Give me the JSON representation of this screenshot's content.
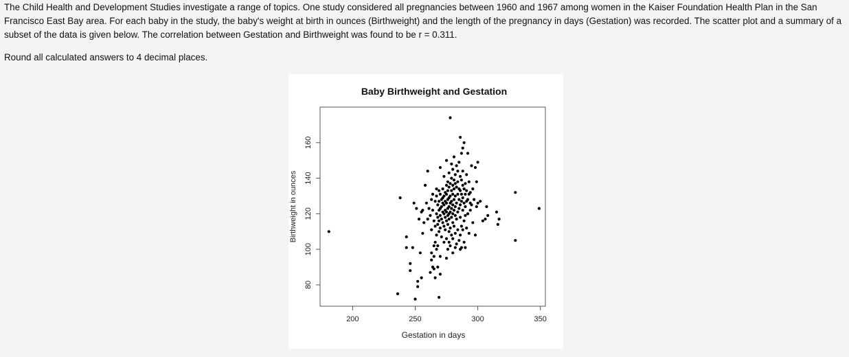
{
  "problem": {
    "intro": "The Child Health and Development Studies investigate a range of topics. One study considered all pregnancies between 1960 and 1967 among women in the Kaiser Foundation Health Plan in the San Francisco East Bay area. For each baby in the study, the baby's weight at birth in ounces (Birthweight) and the length of the pregnancy in days (Gestation) was recorded. The scatter plot and a summary of a subset of the data is given below. The correlation between Gestation and Birthweight was found to be r = 0.311.",
    "rounding_note": "Round all calculated answers to 4 decimal places."
  },
  "chart_data": {
    "type": "scatter",
    "title": "Baby Birthweight and Gestation",
    "xlabel": "Gestation in days",
    "ylabel": "Birthweight in ounces",
    "xlim": [
      174,
      354
    ],
    "ylim": [
      68,
      180
    ],
    "x_ticks": [
      200,
      250,
      300,
      350
    ],
    "y_ticks": [
      80,
      100,
      120,
      140,
      160
    ],
    "marker_color": "#000000",
    "points": [
      [
        181,
        110
      ],
      [
        238,
        129
      ],
      [
        236,
        75
      ],
      [
        243,
        107
      ],
      [
        243,
        101
      ],
      [
        246,
        92
      ],
      [
        246,
        88
      ],
      [
        248,
        101
      ],
      [
        249,
        126
      ],
      [
        250,
        72
      ],
      [
        251,
        123
      ],
      [
        252,
        82
      ],
      [
        252,
        79
      ],
      [
        253,
        117
      ],
      [
        254,
        98
      ],
      [
        255,
        84
      ],
      [
        255,
        121
      ],
      [
        256,
        122
      ],
      [
        256,
        109
      ],
      [
        257,
        115
      ],
      [
        258,
        136
      ],
      [
        259,
        126
      ],
      [
        260,
        144
      ],
      [
        260,
        117
      ],
      [
        261,
        123
      ],
      [
        262,
        119
      ],
      [
        262,
        87
      ],
      [
        263,
        128
      ],
      [
        263,
        111
      ],
      [
        263,
        98
      ],
      [
        263,
        94
      ],
      [
        264,
        131
      ],
      [
        264,
        122
      ],
      [
        264,
        90
      ],
      [
        265,
        116
      ],
      [
        265,
        102
      ],
      [
        265,
        96
      ],
      [
        265,
        89
      ],
      [
        266,
        127
      ],
      [
        266,
        113
      ],
      [
        266,
        104
      ],
      [
        266,
        84
      ],
      [
        267,
        134
      ],
      [
        267,
        130
      ],
      [
        267,
        120
      ],
      [
        267,
        108
      ],
      [
        267,
        100
      ],
      [
        268,
        125
      ],
      [
        268,
        118
      ],
      [
        268,
        114
      ],
      [
        268,
        102
      ],
      [
        268,
        90
      ],
      [
        269,
        133
      ],
      [
        269,
        127
      ],
      [
        269,
        122
      ],
      [
        269,
        116
      ],
      [
        269,
        110
      ],
      [
        269,
        73
      ],
      [
        270,
        146
      ],
      [
        270,
        131
      ],
      [
        270,
        123
      ],
      [
        270,
        119
      ],
      [
        270,
        112
      ],
      [
        270,
        96
      ],
      [
        270,
        86
      ],
      [
        271,
        128
      ],
      [
        271,
        124
      ],
      [
        271,
        117
      ],
      [
        271,
        107
      ],
      [
        272,
        134
      ],
      [
        272,
        129
      ],
      [
        272,
        126
      ],
      [
        272,
        121
      ],
      [
        272,
        115
      ],
      [
        273,
        141
      ],
      [
        273,
        130
      ],
      [
        273,
        125
      ],
      [
        273,
        120
      ],
      [
        273,
        113
      ],
      [
        273,
        104
      ],
      [
        274,
        132
      ],
      [
        274,
        127
      ],
      [
        274,
        122
      ],
      [
        274,
        118
      ],
      [
        274,
        111
      ],
      [
        275,
        150
      ],
      [
        275,
        136
      ],
      [
        275,
        131
      ],
      [
        275,
        126
      ],
      [
        275,
        121
      ],
      [
        275,
        116
      ],
      [
        275,
        106
      ],
      [
        275,
        95
      ],
      [
        276,
        138
      ],
      [
        276,
        133
      ],
      [
        276,
        128
      ],
      [
        276,
        123
      ],
      [
        276,
        119
      ],
      [
        276,
        114
      ],
      [
        276,
        100
      ],
      [
        277,
        143
      ],
      [
        277,
        135
      ],
      [
        277,
        129
      ],
      [
        277,
        124
      ],
      [
        277,
        120
      ],
      [
        277,
        117
      ],
      [
        277,
        110
      ],
      [
        277,
        104
      ],
      [
        278,
        174
      ],
      [
        278,
        137
      ],
      [
        278,
        130
      ],
      [
        278,
        126
      ],
      [
        278,
        121
      ],
      [
        278,
        112
      ],
      [
        278,
        102
      ],
      [
        279,
        148
      ],
      [
        279,
        140
      ],
      [
        279,
        133
      ],
      [
        279,
        127
      ],
      [
        279,
        123
      ],
      [
        279,
        118
      ],
      [
        279,
        108
      ],
      [
        280,
        145
      ],
      [
        280,
        136
      ],
      [
        280,
        131
      ],
      [
        280,
        125
      ],
      [
        280,
        120
      ],
      [
        280,
        115
      ],
      [
        280,
        106
      ],
      [
        280,
        98
      ],
      [
        281,
        152
      ],
      [
        281,
        139
      ],
      [
        281,
        134
      ],
      [
        281,
        128
      ],
      [
        281,
        122
      ],
      [
        281,
        113
      ],
      [
        282,
        142
      ],
      [
        282,
        137
      ],
      [
        282,
        130
      ],
      [
        282,
        124
      ],
      [
        282,
        119
      ],
      [
        282,
        109
      ],
      [
        282,
        101
      ],
      [
        283,
        147
      ],
      [
        283,
        135
      ],
      [
        283,
        126
      ],
      [
        283,
        117
      ],
      [
        283,
        103
      ],
      [
        284,
        144
      ],
      [
        284,
        138
      ],
      [
        284,
        131
      ],
      [
        284,
        121
      ],
      [
        284,
        111
      ],
      [
        285,
        149
      ],
      [
        285,
        134
      ],
      [
        285,
        128
      ],
      [
        285,
        123
      ],
      [
        285,
        105
      ],
      [
        286,
        163
      ],
      [
        286,
        141
      ],
      [
        286,
        133
      ],
      [
        286,
        125
      ],
      [
        286,
        118
      ],
      [
        286,
        108
      ],
      [
        286,
        100
      ],
      [
        287,
        154
      ],
      [
        287,
        139
      ],
      [
        287,
        131
      ],
      [
        287,
        127
      ],
      [
        287,
        113
      ],
      [
        287,
        101
      ],
      [
        288,
        157
      ],
      [
        288,
        144
      ],
      [
        288,
        136
      ],
      [
        288,
        129
      ],
      [
        288,
        122
      ],
      [
        288,
        111
      ],
      [
        289,
        160
      ],
      [
        289,
        134
      ],
      [
        289,
        126
      ],
      [
        289,
        116
      ],
      [
        289,
        104
      ],
      [
        290,
        137
      ],
      [
        290,
        131
      ],
      [
        290,
        124
      ],
      [
        290,
        119
      ],
      [
        290,
        101
      ],
      [
        291,
        142
      ],
      [
        291,
        133
      ],
      [
        291,
        127
      ],
      [
        291,
        112
      ],
      [
        292,
        154
      ],
      [
        292,
        128
      ],
      [
        292,
        120
      ],
      [
        293,
        138
      ],
      [
        293,
        131
      ],
      [
        293,
        109
      ],
      [
        294,
        132
      ],
      [
        294,
        126
      ],
      [
        294,
        122
      ],
      [
        295,
        147
      ],
      [
        295,
        125
      ],
      [
        296,
        134
      ],
      [
        296,
        115
      ],
      [
        297,
        128
      ],
      [
        298,
        146
      ],
      [
        298,
        108
      ],
      [
        299,
        124
      ],
      [
        299,
        138
      ],
      [
        300,
        149
      ],
      [
        300,
        126
      ],
      [
        302,
        127
      ],
      [
        304,
        116
      ],
      [
        306,
        117
      ],
      [
        307,
        124
      ],
      [
        308,
        119
      ],
      [
        315,
        121
      ],
      [
        316,
        114
      ],
      [
        317,
        117
      ],
      [
        330,
        105
      ],
      [
        330,
        132
      ],
      [
        349,
        123
      ]
    ]
  }
}
